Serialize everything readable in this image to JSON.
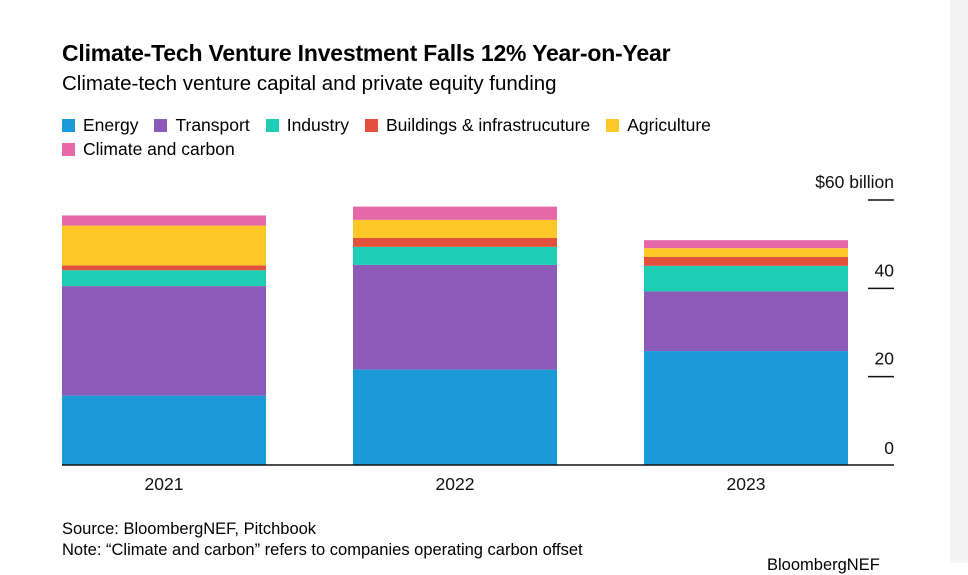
{
  "title": "Climate-Tech Venture Investment Falls 12% Year-on-Year",
  "subtitle": "Climate-tech venture capital and private equity funding",
  "colors": {
    "energy": "#1a9bd7",
    "transport": "#8c5bb8",
    "industry": "#1fcdb5",
    "buildings": "#e3513c",
    "agriculture": "#fdc828",
    "climate": "#e568a8"
  },
  "chart_data": {
    "type": "bar",
    "stacked": true,
    "title": "Climate-Tech Venture Investment Falls 12% Year-on-Year",
    "subtitle": "Climate-tech venture capital and private equity funding",
    "categories": [
      "2021",
      "2022",
      "2023"
    ],
    "series": [
      {
        "name": "Energy",
        "color": "#1a9bd7",
        "values": [
          15.7,
          21.6,
          25.8
        ]
      },
      {
        "name": "Transport",
        "color": "#8c5bb8",
        "values": [
          24.8,
          23.7,
          13.5
        ]
      },
      {
        "name": "Industry",
        "color": "#1fcdb5",
        "values": [
          3.6,
          4.1,
          5.8
        ]
      },
      {
        "name": "Buildings & infrastrucuture",
        "color": "#e3513c",
        "values": [
          1.1,
          2.0,
          2.0
        ]
      },
      {
        "name": "Agriculture",
        "color": "#fdc828",
        "values": [
          9.0,
          4.1,
          2.0
        ]
      },
      {
        "name": "Climate and carbon",
        "color": "#e568a8",
        "values": [
          2.3,
          3.0,
          1.8
        ]
      }
    ],
    "ylim": [
      0,
      60
    ],
    "yticks": [
      0,
      20,
      40,
      60
    ],
    "ytick_labels": [
      "0",
      "20",
      "40",
      "$60 billion"
    ],
    "xlabel": "",
    "ylabel": "",
    "legend": "top",
    "source": "Source: BloombergNEF, Pitchbook",
    "note": "Note: “Climate and carbon” refers to companies operating carbon offset",
    "credit": "BloombergNEF"
  }
}
